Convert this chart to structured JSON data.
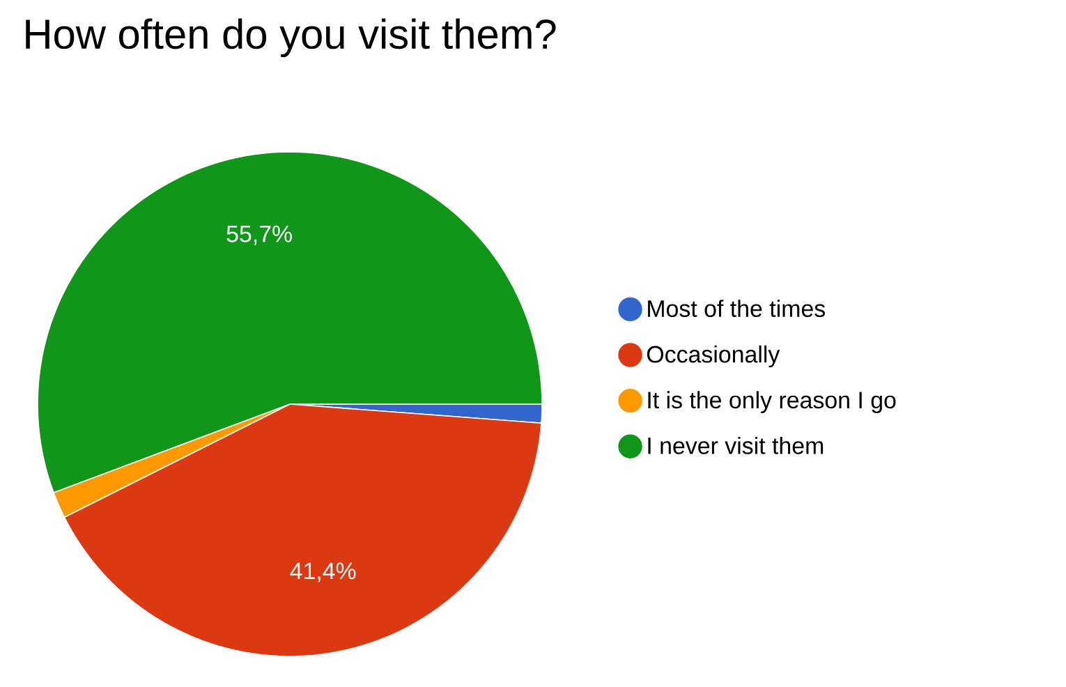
{
  "chart_data": {
    "type": "pie",
    "title": "How often do you visit them?",
    "categories": [
      "Most of the times",
      "Occasionally",
      "It is the only reason I go",
      "I never visit them"
    ],
    "values": [
      1.2,
      41.4,
      1.7,
      55.7
    ],
    "colors": [
      "#3366cc",
      "#dc3912",
      "#ff9900",
      "#109618"
    ],
    "value_labels": [
      null,
      "41,4%",
      null,
      "55,7%"
    ],
    "legend": "right"
  }
}
